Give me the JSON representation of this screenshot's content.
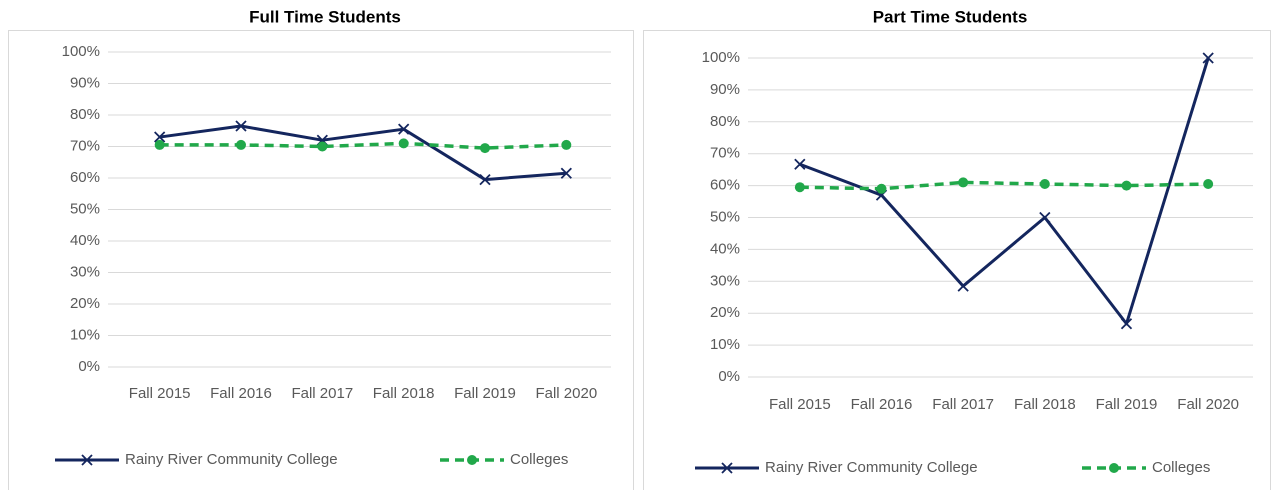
{
  "chart_data": [
    {
      "type": "line",
      "title": "Full Time Students",
      "categories": [
        "Fall 2015",
        "Fall 2016",
        "Fall 2017",
        "Fall 2018",
        "Fall 2019",
        "Fall 2020"
      ],
      "series": [
        {
          "name": "Rainy River Community College",
          "color": "#14265e",
          "marker": "x",
          "dash": false,
          "values": [
            73,
            76.5,
            72,
            75.5,
            59.5,
            61.5
          ]
        },
        {
          "name": "Colleges",
          "color": "#21a84a",
          "marker": "circle",
          "dash": true,
          "values": [
            70.5,
            70.5,
            70,
            71,
            69.5,
            70.5
          ]
        }
      ],
      "ylim": [
        0,
        100
      ],
      "yticks": [
        {
          "value": 0,
          "label": "0%"
        },
        {
          "value": 10,
          "label": "10%"
        },
        {
          "value": 20,
          "label": "20%"
        },
        {
          "value": 30,
          "label": "30%"
        },
        {
          "value": 40,
          "label": "40%"
        },
        {
          "value": 50,
          "label": "50%"
        },
        {
          "value": 60,
          "label": "60%"
        },
        {
          "value": 70,
          "label": "70%"
        },
        {
          "value": 80,
          "label": "80%"
        },
        {
          "value": 90,
          "label": "90%"
        },
        {
          "value": 100,
          "label": "100%"
        }
      ],
      "grid": true,
      "legend": "bottom"
    },
    {
      "type": "line",
      "title": "Part Time Students",
      "categories": [
        "Fall 2015",
        "Fall 2016",
        "Fall 2017",
        "Fall 2018",
        "Fall 2019",
        "Fall 2020"
      ],
      "series": [
        {
          "name": "Rainy River Community College",
          "color": "#14265e",
          "marker": "x",
          "dash": false,
          "values": [
            66.7,
            57,
            28.5,
            50,
            16.7,
            100
          ]
        },
        {
          "name": "Colleges",
          "color": "#21a84a",
          "marker": "circle",
          "dash": true,
          "values": [
            59.5,
            59,
            61,
            60.5,
            60,
            60.5
          ]
        }
      ],
      "ylim": [
        0,
        100
      ],
      "yticks": [
        {
          "value": 0,
          "label": "0%"
        },
        {
          "value": 10,
          "label": "10%"
        },
        {
          "value": 20,
          "label": "20%"
        },
        {
          "value": 30,
          "label": "30%"
        },
        {
          "value": 40,
          "label": "40%"
        },
        {
          "value": 50,
          "label": "50%"
        },
        {
          "value": 60,
          "label": "60%"
        },
        {
          "value": 70,
          "label": "70%"
        },
        {
          "value": 80,
          "label": "80%"
        },
        {
          "value": 90,
          "label": "90%"
        },
        {
          "value": 100,
          "label": "100%"
        }
      ],
      "grid": true,
      "legend": "bottom"
    }
  ]
}
